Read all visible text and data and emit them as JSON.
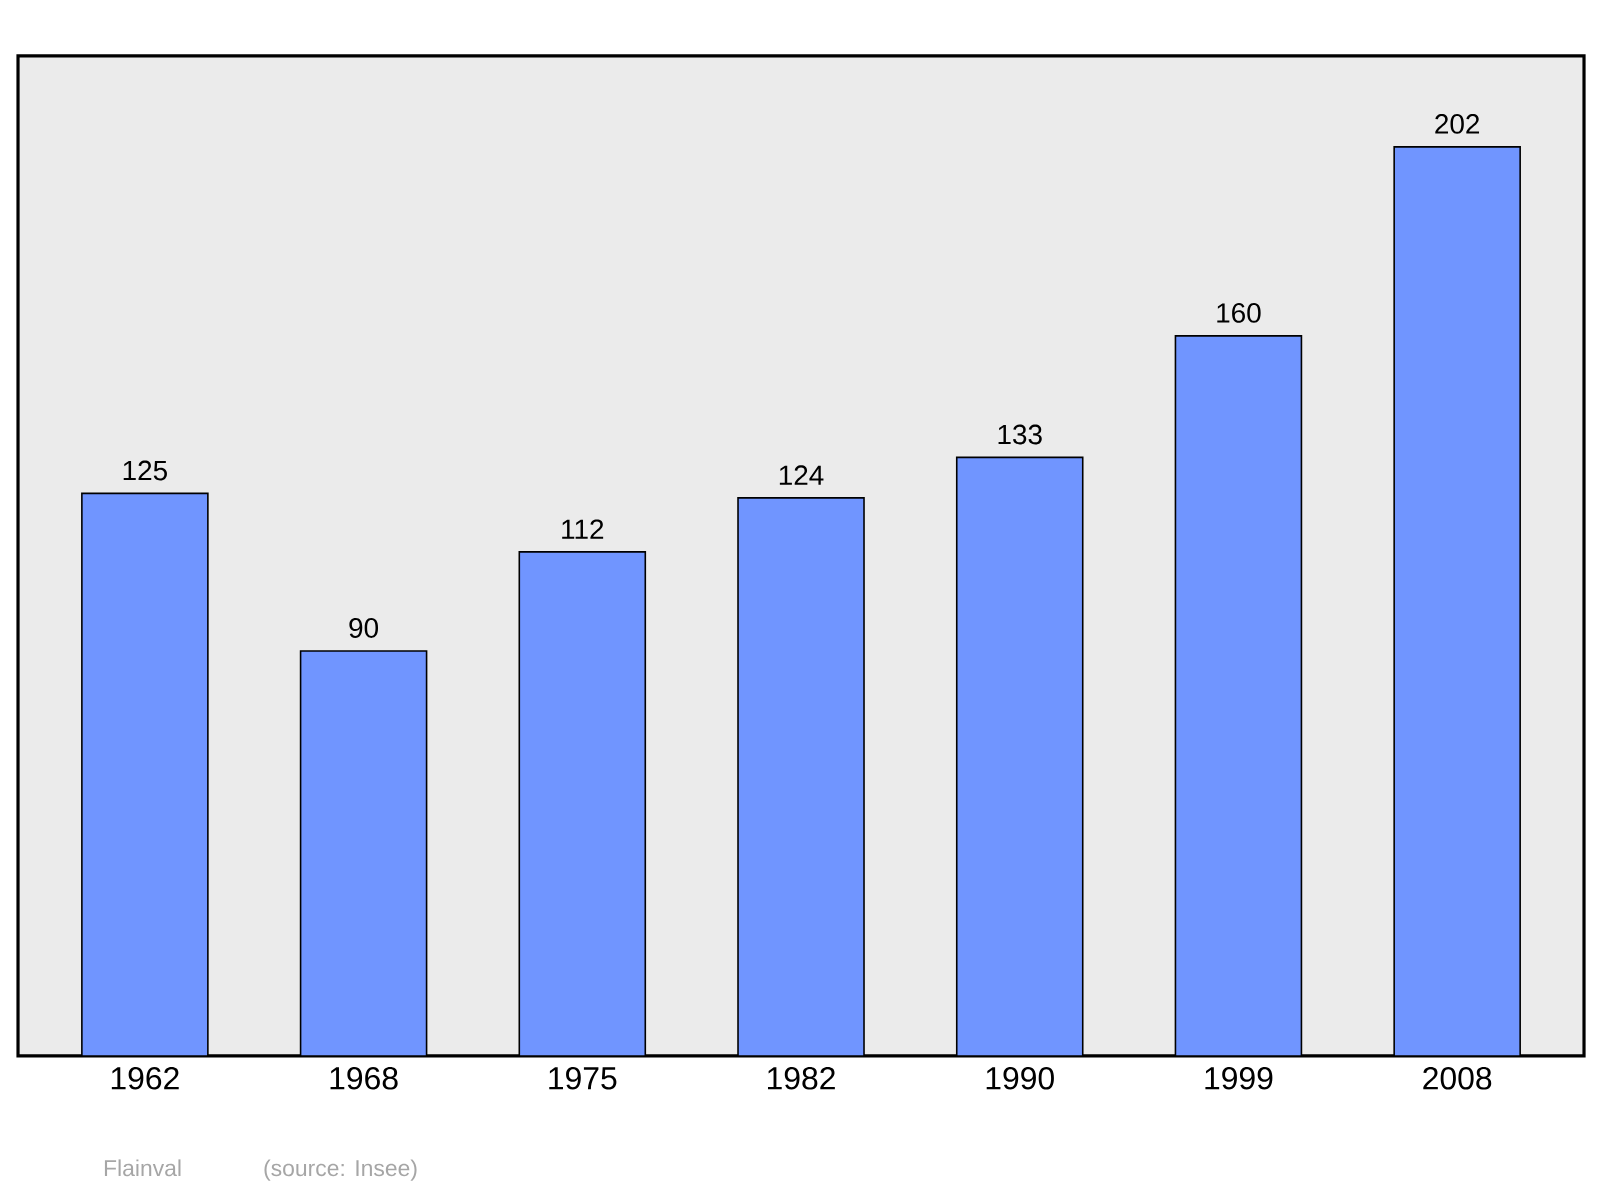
{
  "chart_data": {
    "type": "bar",
    "categories": [
      "1962",
      "1968",
      "1975",
      "1982",
      "1990",
      "1999",
      "2008"
    ],
    "values": [
      125,
      90,
      112,
      124,
      133,
      160,
      202
    ],
    "color": "#7095ff",
    "data_labels": true,
    "annotations": [
      "Flainval",
      "(source: Insee)"
    ]
  }
}
